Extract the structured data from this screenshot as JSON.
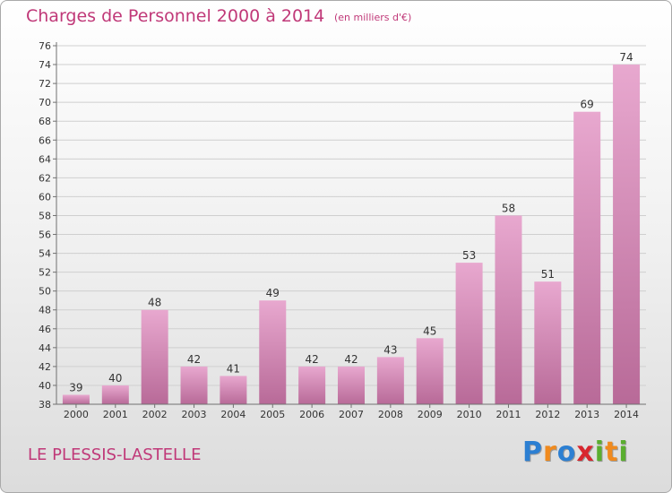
{
  "header": {
    "title": "Charges de Personnel 2000 à 2014",
    "subtitle": "(en milliers d'€)"
  },
  "footer": {
    "commune": "LE PLESSIS-LASTELLE",
    "logo_text": "Proxiti",
    "logo_colors": [
      "#2c7fd2",
      "#f08a1e",
      "#2c7fd2",
      "#d8262e",
      "#5aae2f",
      "#f08a1e",
      "#5aae2f"
    ]
  },
  "colors": {
    "text_accent": "#c03878",
    "bar_top": "#e8a8cf",
    "bar_bottom": "#b86a98",
    "grid": "#cfcfcf",
    "axis": "#707070"
  },
  "chart_data": {
    "type": "bar",
    "title": "Charges de Personnel 2000 à 2014",
    "subtitle": "(en milliers d'€)",
    "categories": [
      "2000",
      "2001",
      "2002",
      "2003",
      "2004",
      "2005",
      "2006",
      "2007",
      "2008",
      "2009",
      "2010",
      "2011",
      "2012",
      "2013",
      "2014"
    ],
    "values": [
      39,
      40,
      48,
      42,
      41,
      49,
      42,
      42,
      43,
      45,
      53,
      58,
      51,
      69,
      74
    ],
    "ylim": [
      38,
      76
    ],
    "ytick_step": 2,
    "grid": true,
    "data_labels": true
  }
}
